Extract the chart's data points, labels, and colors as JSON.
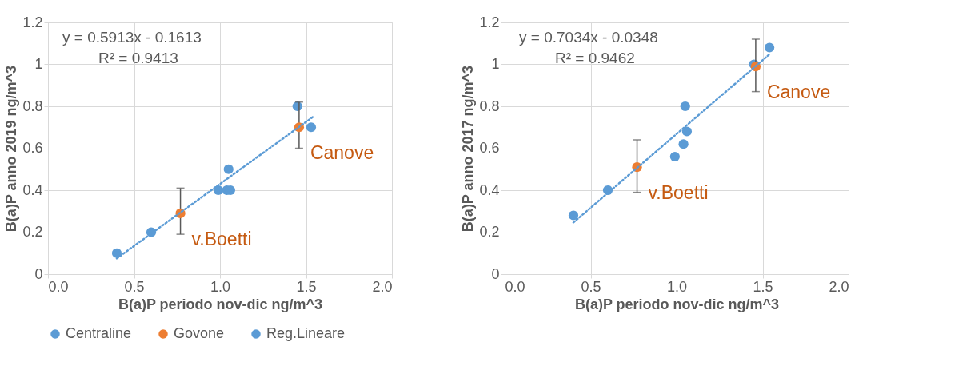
{
  "chart_data": [
    {
      "type": "scatter",
      "xlabel": "B(a)P periodo nov-dic ng/m^3",
      "ylabel": "B(a)P anno 2019 ng/m^3",
      "xlim": [
        0,
        2
      ],
      "xticks": [
        {
          "value": 0,
          "label": "0.0"
        },
        {
          "value": 0.5,
          "label": "0.5"
        },
        {
          "value": 1,
          "label": "1.0"
        },
        {
          "value": 1.5,
          "label": "1.5"
        },
        {
          "value": 2,
          "label": "2.0"
        }
      ],
      "ylim": [
        0,
        1.2
      ],
      "yticks": [
        0,
        0.2,
        0.4,
        0.6,
        0.8,
        1,
        1.2
      ],
      "grid": true,
      "legend": "bottom",
      "marker": "circle",
      "series": [
        {
          "name": "Centraline",
          "color": "#5b9bd5",
          "x": [
            0.4,
            0.6,
            0.99,
            1.04,
            1.06,
            1.05,
            1.45,
            1.53
          ],
          "values": [
            0.1,
            0.2,
            0.4,
            0.4,
            0.4,
            0.5,
            0.8,
            0.7
          ]
        },
        {
          "name": "Govone",
          "color": "#ed7d31",
          "x": [
            0.77,
            1.46
          ],
          "values": [
            0.29,
            0.7
          ],
          "errors": [
            [
              0.19,
              0.41
            ],
            [
              0.6,
              0.82
            ]
          ]
        },
        {
          "name": "Reg.Lineare",
          "type": "line",
          "line_style": "dotted",
          "marker": "none",
          "color": "#5b9bd5",
          "x": [
            0.4,
            1.54
          ],
          "values": [
            0.075,
            0.749
          ]
        }
      ],
      "annotations": [
        "y = 0.5913x - 0.1613",
        "R² = 0.9413",
        "v.Boetti",
        "Canove"
      ]
    },
    {
      "type": "scatter",
      "xlabel": "B(a)P periodo nov-dic ng/m^3",
      "ylabel": "B(a)P anno 2017 ng/m^3",
      "xlim": [
        0,
        2
      ],
      "xticks": [
        {
          "value": 0,
          "label": "0.0"
        },
        {
          "value": 0.5,
          "label": "0.5"
        },
        {
          "value": 1,
          "label": "1.0"
        },
        {
          "value": 1.5,
          "label": "1.5"
        },
        {
          "value": 2,
          "label": "2.0"
        }
      ],
      "ylim": [
        0,
        1.2
      ],
      "yticks": [
        0,
        0.2,
        0.4,
        0.6,
        0.8,
        1,
        1.2
      ],
      "grid": true,
      "legend": "bottom",
      "marker": "circle",
      "series": [
        {
          "name": "Centraline",
          "color": "#5b9bd5",
          "x": [
            0.4,
            0.6,
            0.99,
            1.04,
            1.06,
            1.05,
            1.45,
            1.54
          ],
          "values": [
            0.28,
            0.4,
            0.56,
            0.62,
            0.68,
            0.8,
            1.0,
            1.08
          ]
        },
        {
          "name": "Govone",
          "color": "#ed7d31",
          "x": [
            0.77,
            1.46
          ],
          "values": [
            0.51,
            0.99
          ],
          "errors": [
            [
              0.39,
              0.64
            ],
            [
              0.87,
              1.12
            ]
          ]
        },
        {
          "name": "Reg.Lineare",
          "type": "line",
          "line_style": "dotted",
          "marker": "none",
          "color": "#5b9bd5",
          "x": [
            0.4,
            1.54
          ],
          "values": [
            0.246,
            1.048
          ]
        }
      ],
      "annotations": [
        "y = 0.7034x - 0.0348",
        "R² = 0.9462",
        "v.Boetti",
        "Canove"
      ]
    }
  ]
}
